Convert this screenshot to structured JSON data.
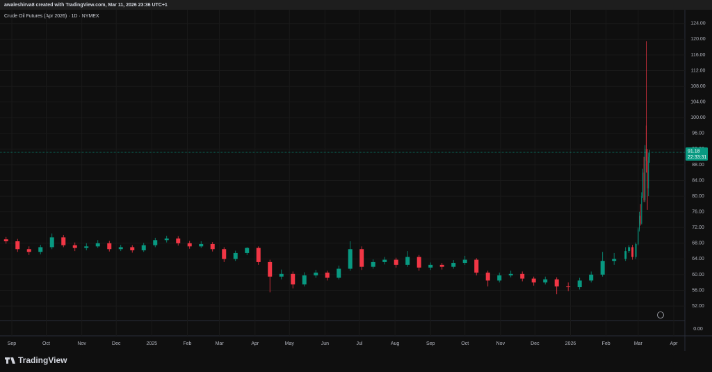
{
  "header": "awaleshirva8 created with TradingView.com, Mar 11, 2026 23:36 UTC+1",
  "footer_logo": "TradingView",
  "chart_data": {
    "type": "candlestick",
    "title": "Crude Oil Futures (Apr 2026) · 1D · NYMEX",
    "up_color": "#089981",
    "down_color": "#f23645",
    "grid": true,
    "countdown": "22:33:31",
    "x": [
      -5,
      5,
      15,
      25,
      35,
      45,
      55,
      65,
      75,
      85,
      95,
      105,
      115,
      125,
      135,
      145,
      155,
      165,
      175,
      185,
      195,
      205,
      215,
      225,
      235,
      245,
      255,
      265,
      275,
      285,
      295,
      305,
      315,
      325,
      335,
      345,
      355,
      365,
      375,
      385,
      395,
      405,
      415,
      425,
      435,
      445,
      455,
      465,
      475,
      485,
      495,
      505,
      515,
      525,
      535,
      538,
      541,
      544,
      546,
      547,
      548,
      549,
      550,
      551,
      552,
      553,
      554,
      555,
      556
    ],
    "open": [
      69.0,
      68.5,
      66.5,
      65.8,
      67.0,
      69.5,
      67.5,
      66.8,
      67.2,
      68.0,
      66.5,
      67.0,
      66.2,
      67.5,
      68.8,
      69.2,
      68.0,
      67.2,
      67.8,
      66.5,
      64.0,
      65.5,
      66.8,
      63.2,
      59.5,
      60.2,
      57.5,
      59.8,
      60.5,
      59.2,
      61.5,
      66.5,
      62.0,
      63.2,
      63.8,
      62.5,
      64.5,
      61.8,
      62.5,
      62.0,
      63.0,
      63.8,
      60.5,
      58.5,
      59.8,
      60.2,
      59.0,
      58.0,
      58.8,
      57.0,
      56.8,
      58.5,
      60.0,
      63.5,
      64.0,
      66.0,
      67.0,
      64.5,
      67.8,
      71.5,
      75.0,
      73.0,
      80.0,
      86.0,
      79.0,
      98.0,
      89.0,
      82.0,
      90.0
    ],
    "high": [
      69.6,
      69.1,
      67.2,
      67.6,
      70.5,
      70.1,
      68.2,
      68.0,
      68.8,
      68.6,
      67.6,
      67.5,
      68.1,
      69.4,
      69.9,
      69.8,
      68.6,
      68.5,
      68.3,
      67.0,
      66.1,
      67.0,
      67.2,
      63.8,
      61.3,
      60.8,
      60.6,
      61.2,
      61.0,
      62.3,
      68.5,
      67.2,
      63.9,
      64.5,
      64.3,
      66.0,
      65.0,
      63.1,
      63.0,
      63.7,
      64.8,
      64.2,
      61.0,
      60.5,
      61.0,
      60.8,
      59.5,
      59.5,
      59.3,
      58.0,
      59.2,
      60.8,
      65.8,
      65.5,
      67.0,
      67.5,
      67.6,
      68.2,
      72.0,
      76.0,
      78.0,
      81.0,
      87.0,
      90.0,
      93.0,
      119.5,
      92.0,
      91.0,
      91.8
    ],
    "low": [
      67.9,
      65.8,
      65.0,
      65.2,
      66.5,
      67.0,
      66.0,
      66.2,
      66.8,
      65.9,
      66.0,
      65.6,
      65.8,
      67.0,
      68.2,
      67.4,
      66.6,
      66.8,
      65.9,
      63.2,
      63.5,
      65.0,
      62.5,
      55.5,
      58.8,
      56.5,
      57.0,
      59.2,
      58.5,
      58.8,
      61.0,
      61.2,
      61.5,
      62.6,
      61.8,
      62.0,
      61.0,
      61.2,
      61.3,
      61.5,
      62.5,
      59.8,
      57.0,
      58.0,
      59.3,
      58.3,
      57.2,
      57.5,
      55.0,
      55.8,
      56.2,
      58.0,
      59.5,
      62.5,
      63.5,
      65.5,
      63.8,
      64.0,
      67.5,
      71.0,
      72.5,
      72.8,
      79.5,
      78.5,
      78.5,
      86.0,
      76.5,
      80.0,
      88.5
    ],
    "close": [
      68.5,
      66.5,
      65.8,
      67.0,
      69.5,
      67.5,
      66.8,
      67.2,
      68.0,
      66.5,
      67.0,
      66.2,
      67.5,
      68.8,
      69.2,
      68.0,
      67.2,
      67.8,
      66.5,
      64.0,
      65.5,
      66.8,
      63.2,
      59.5,
      60.2,
      57.5,
      59.8,
      60.5,
      59.2,
      61.5,
      66.5,
      62.0,
      63.2,
      63.8,
      62.5,
      64.5,
      61.8,
      62.5,
      62.0,
      63.0,
      63.8,
      60.5,
      58.5,
      59.8,
      60.2,
      59.0,
      58.0,
      58.8,
      57.0,
      56.8,
      58.5,
      60.0,
      63.5,
      64.0,
      66.0,
      67.0,
      64.5,
      67.8,
      71.5,
      75.0,
      73.0,
      80.0,
      86.0,
      79.0,
      92.0,
      89.0,
      82.0,
      90.0,
      91.18
    ],
    "xlim": [
      -10.3,
      586.7
    ],
    "xticks": [
      {
        "value": 0,
        "label": "Sep"
      },
      {
        "value": 30,
        "label": "Oct"
      },
      {
        "value": 61,
        "label": "Nov"
      },
      {
        "value": 91,
        "label": "Dec"
      },
      {
        "value": 122,
        "label": "2025"
      },
      {
        "value": 153,
        "label": "Feb"
      },
      {
        "value": 181,
        "label": "Mar"
      },
      {
        "value": 212,
        "label": "Apr"
      },
      {
        "value": 242,
        "label": "May"
      },
      {
        "value": 273,
        "label": "Jun"
      },
      {
        "value": 303,
        "label": "Jul"
      },
      {
        "value": 334,
        "label": "Aug"
      },
      {
        "value": 365,
        "label": "Sep"
      },
      {
        "value": 395,
        "label": "Oct"
      },
      {
        "value": 426,
        "label": "Nov"
      },
      {
        "value": 456,
        "label": "Dec"
      },
      {
        "value": 487,
        "label": "2026"
      },
      {
        "value": 518,
        "label": "Feb"
      },
      {
        "value": 546,
        "label": "Mar"
      },
      {
        "value": 577,
        "label": "Apr"
      }
    ],
    "ylim": [
      48.3,
      126.8
    ],
    "yticks": [
      {
        "value": 52,
        "label": "52.00"
      },
      {
        "value": 56,
        "label": "56.00"
      },
      {
        "value": 60,
        "label": "60.00"
      },
      {
        "value": 64,
        "label": "64.00"
      },
      {
        "value": 68,
        "label": "68.00"
      },
      {
        "value": 72,
        "label": "72.00"
      },
      {
        "value": 76,
        "label": "76.00"
      },
      {
        "value": 80,
        "label": "80.00"
      },
      {
        "value": 84,
        "label": "84.00"
      },
      {
        "value": 88,
        "label": "88.00"
      },
      {
        "value": 92,
        "label": "92.00"
      },
      {
        "value": 96,
        "label": "96.00"
      },
      {
        "value": 100,
        "label": "100.00"
      },
      {
        "value": 104,
        "label": "104.00"
      },
      {
        "value": 108,
        "label": "108.00"
      },
      {
        "value": 112,
        "label": "112.00"
      },
      {
        "value": 116,
        "label": "116.00"
      },
      {
        "value": 120,
        "label": "120.00"
      },
      {
        "value": 124,
        "label": "124.00"
      }
    ],
    "pane2_yticks": [
      {
        "value": 0,
        "label": "0.00"
      }
    ]
  }
}
